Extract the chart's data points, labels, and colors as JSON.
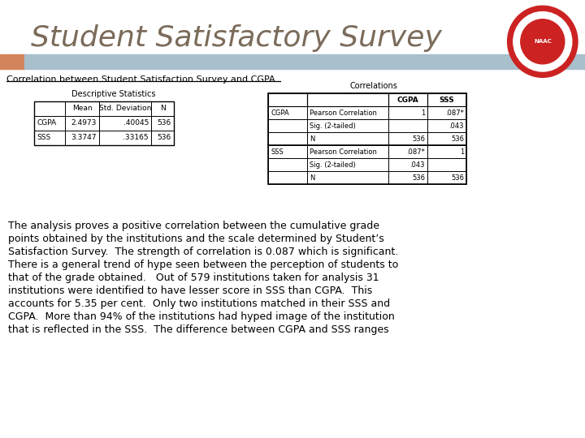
{
  "title": "Student Satisfactory Survey",
  "title_color": "#7B6B5A",
  "subtitle": "Correlation between Student Satisfaction Survey and CGPA",
  "header_bar_color": "#A8BFCC",
  "header_accent_color": "#D4845A",
  "bg_color": "#FFFFFF",
  "desc_table_title": "Descriptive Statistics",
  "desc_headers": [
    "",
    "Mean",
    "Std. Deviation",
    "N"
  ],
  "desc_rows": [
    [
      "CGPA",
      "2.4973",
      ".40045",
      "536"
    ],
    [
      "SSS",
      "3.3747",
      ".33165",
      "536"
    ]
  ],
  "corr_table_title": "Correlations",
  "corr_col_headers": [
    "CGPA",
    "SSS"
  ],
  "corr_rows": [
    [
      "CGPA",
      "Pearson Correlation",
      "1",
      ".087*"
    ],
    [
      "",
      "Sig. (2-tailed)",
      "",
      ".043"
    ],
    [
      "",
      "N",
      "536",
      "536"
    ],
    [
      "SSS",
      "Pearson Correlation",
      ".087*",
      "1"
    ],
    [
      "",
      "Sig. (2-tailed)",
      ".043",
      ""
    ],
    [
      "",
      "N",
      "536",
      "536"
    ]
  ],
  "body_lines": [
    "The analysis proves a positive correlation between the cumulative grade",
    "points obtained by the institutions and the scale determined by Student’s",
    "Satisfaction Survey.  The strength of correlation is 0.087 which is significant.",
    "There is a general trend of hype seen between the perception of students to",
    "that of the grade obtained.   Out of 579 institutions taken for analysis 31",
    "institutions were identified to have lesser score in SSS than CGPA.  This",
    "accounts for 5.35 per cent.  Only two institutions matched in their SSS and",
    "CGPA.  More than 94% of the institutions had hyped image of the institution",
    "that is reflected in the SSS.  The difference between CGPA and SSS ranges"
  ],
  "body_text_color": "#000000",
  "body_font_size": 9.0
}
